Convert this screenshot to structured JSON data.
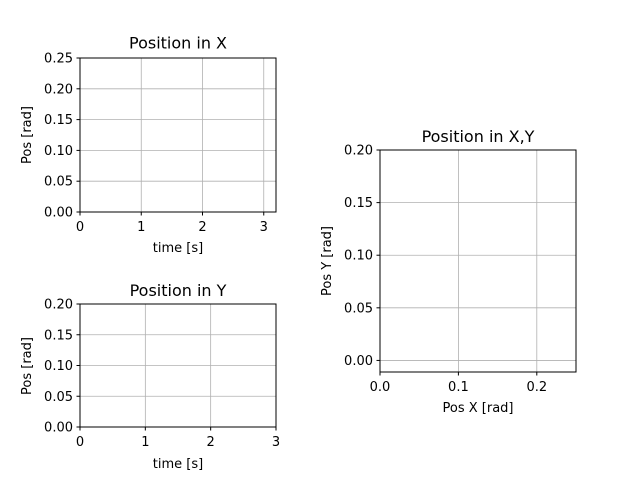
{
  "chart_data": [
    {
      "id": "pos-x",
      "type": "line",
      "title": "Position in X",
      "xlabel": "time [s]",
      "ylabel": "Pos [rad]",
      "xlim": [
        0,
        3.2
      ],
      "ylim": [
        0,
        0.25
      ],
      "xticks": [
        0,
        1,
        2,
        3
      ],
      "xtick_labels": [
        "0",
        "1",
        "2",
        "3"
      ],
      "yticks": [
        0,
        0.05,
        0.1,
        0.15,
        0.2,
        0.25
      ],
      "ytick_labels": [
        "0.00",
        "0.05",
        "0.10",
        "0.15",
        "0.20",
        "0.25"
      ],
      "grid": true,
      "series": []
    },
    {
      "id": "pos-y",
      "type": "line",
      "title": "Position in Y",
      "xlabel": "time [s]",
      "ylabel": "Pos [rad]",
      "xlim": [
        0,
        3
      ],
      "ylim": [
        0,
        0.2
      ],
      "xticks": [
        0,
        1,
        2,
        3
      ],
      "xtick_labels": [
        "0",
        "1",
        "2",
        "3"
      ],
      "yticks": [
        0,
        0.05,
        0.1,
        0.15,
        0.2
      ],
      "ytick_labels": [
        "0.00",
        "0.05",
        "0.10",
        "0.15",
        "0.20"
      ],
      "grid": true,
      "series": []
    },
    {
      "id": "pos-xy",
      "type": "line",
      "title": "Position in X,Y",
      "xlabel": "Pos X [rad]",
      "ylabel": "Pos Y [rad]",
      "xlim": [
        0,
        0.25
      ],
      "ylim": [
        -0.011,
        0.2
      ],
      "xticks": [
        0,
        0.1,
        0.2
      ],
      "xtick_labels": [
        "0.0",
        "0.1",
        "0.2"
      ],
      "yticks": [
        0,
        0.05,
        0.1,
        0.15,
        0.2
      ],
      "ytick_labels": [
        "0.00",
        "0.05",
        "0.10",
        "0.15",
        "0.20"
      ],
      "grid": true,
      "series": []
    }
  ]
}
